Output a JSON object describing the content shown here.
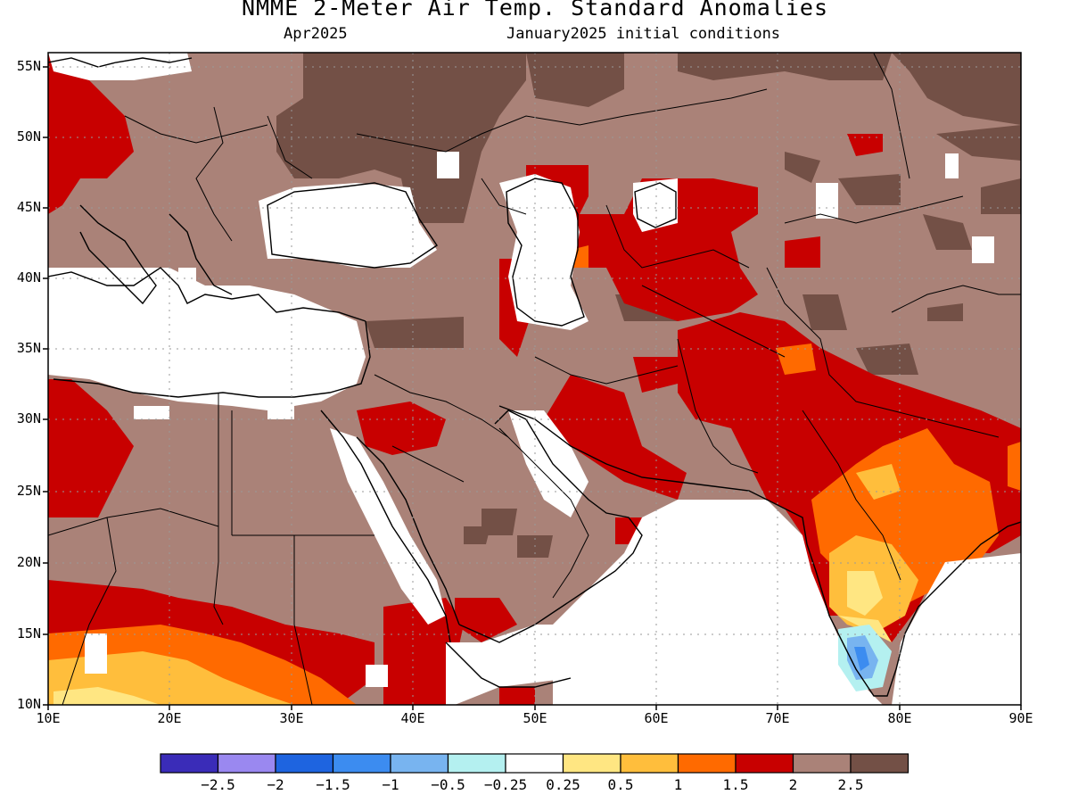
{
  "title": "NMME 2-Meter Air Temp. Standard Anomalies",
  "subtitle_left": "Apr2025",
  "subtitle_right": "January2025 initial conditions",
  "lat_labels": [
    "55N",
    "50N",
    "45N",
    "40N",
    "35N",
    "30N",
    "25N",
    "20N",
    "15N",
    "10N"
  ],
  "lon_labels": [
    "10E",
    "20E",
    "30E",
    "40E",
    "50E",
    "60E",
    "70E",
    "80E",
    "90E"
  ],
  "legend": {
    "colors": [
      "#3a2cb8",
      "#9a88f0",
      "#1e64e0",
      "#3c8cf0",
      "#78b4f0",
      "#b4f0f0",
      "#ffffff",
      "#ffe682",
      "#ffbe3c",
      "#ff6a00",
      "#c80000",
      "#aa8278",
      "#735046"
    ],
    "labels": [
      "-2.5",
      "-2",
      "-1.5",
      "-1",
      "-0.5",
      "-0.25",
      "0.25",
      "0.5",
      "1",
      "1.5",
      "2",
      "2.5"
    ]
  },
  "colors": {
    "land_outline": "#000000",
    "neutral": "#ffffff",
    "strong_warm": "#735046",
    "warm_brown": "#aa8278",
    "red": "#c80000",
    "orange": "#ff6a00",
    "light_orange": "#ffbe3c",
    "yellow": "#ffe682"
  }
}
